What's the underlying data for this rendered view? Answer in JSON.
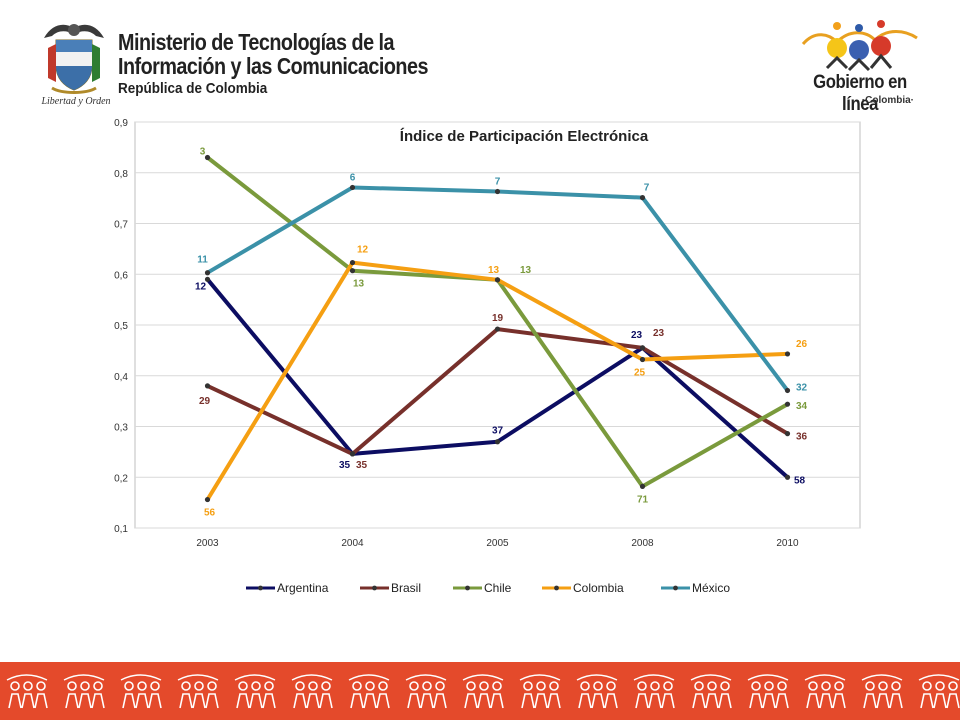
{
  "header": {
    "ministry_line1": "Ministerio de Tecnologías de la",
    "ministry_line2": "Información y las Comunicaciones",
    "ministry_line3": "República de Colombia",
    "seal_motto": "Libertad y Orden",
    "gel_title": "Gobierno en línea",
    "gel_subtitle": "·Colombia·"
  },
  "colors": {
    "Argentina": "#0c0d62",
    "Brasil": "#77302b",
    "Chile": "#7a9a3c",
    "Colombia": "#f59f12",
    "México": "#3b91a8",
    "footer": "#e44a2b"
  },
  "chart_data": {
    "type": "line",
    "title": "Índice de Participación Electrónica",
    "xlabel": "",
    "ylabel": "",
    "categories": [
      "2003",
      "2004",
      "2005",
      "2008",
      "2010"
    ],
    "ylim": [
      0.1,
      0.9
    ],
    "yticks": [
      "0,1",
      "0,2",
      "0,3",
      "0,4",
      "0,5",
      "0,6",
      "0,7",
      "0,8",
      "0,9"
    ],
    "grid": true,
    "legend": "bottom",
    "series": [
      {
        "name": "Argentina",
        "values": [
          0.59,
          0.246,
          0.27,
          0.455,
          0.2
        ],
        "labels": [
          "12",
          "35",
          "37",
          "23",
          "58"
        ]
      },
      {
        "name": "Brasil",
        "values": [
          0.38,
          0.246,
          0.492,
          0.455,
          0.286
        ],
        "labels": [
          "29",
          "35",
          "19",
          "23",
          "36"
        ]
      },
      {
        "name": "Chile",
        "values": [
          0.83,
          0.607,
          0.589,
          0.182,
          0.344
        ],
        "labels": [
          "3",
          "13",
          "13",
          "71",
          "34"
        ]
      },
      {
        "name": "Colombia",
        "values": [
          0.156,
          0.623,
          0.589,
          0.432,
          0.443
        ],
        "labels": [
          "56",
          "12",
          "13",
          "25",
          "26"
        ]
      },
      {
        "name": "México",
        "values": [
          0.603,
          0.771,
          0.763,
          0.751,
          0.371
        ],
        "labels": [
          "11",
          "6",
          "7",
          "7",
          "32"
        ]
      }
    ]
  }
}
